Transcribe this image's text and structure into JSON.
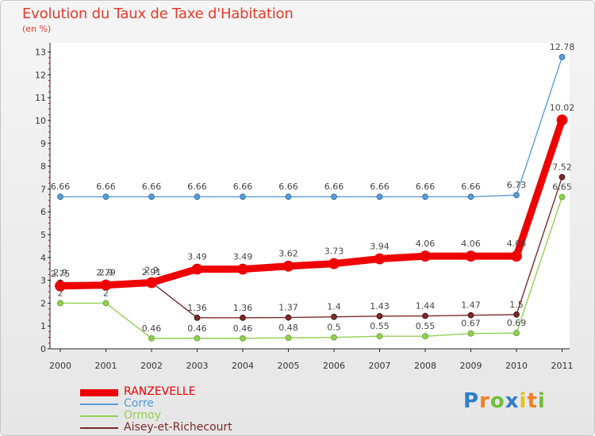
{
  "header": {
    "title": "Evolution du Taux de Taxe d'Habitation",
    "subtitle": "(en %)"
  },
  "chart_data": {
    "type": "line",
    "title": "Evolution du Taux de Taxe d'Habitation",
    "ylabel": "(en %)",
    "xlabel": "",
    "x": [
      "2000",
      "2001",
      "2002",
      "2003",
      "2004",
      "2005",
      "2006",
      "2007",
      "2008",
      "2009",
      "2010",
      "2011"
    ],
    "ylim": [
      0,
      13
    ],
    "yticks": [
      "0",
      "1",
      "2",
      "3",
      "4",
      "5",
      "6",
      "7",
      "8",
      "9",
      "10",
      "11",
      "12",
      "13"
    ],
    "grid": false,
    "legend_position": "bottom-left",
    "series": [
      {
        "name": "RANZEVELLE",
        "color": "#ee0000",
        "values": [
          2.75,
          2.79,
          2.9,
          3.49,
          3.49,
          3.62,
          3.73,
          3.94,
          4.06,
          4.06,
          4.06,
          10.02
        ],
        "labels": [
          "2.75",
          "2.79",
          "2.9",
          "3.49",
          "3.49",
          "3.62",
          "3.73",
          "3.94",
          "4.06",
          "4.06",
          "4.06",
          "10.02"
        ]
      },
      {
        "name": "Corre",
        "color": "#5b9bd5",
        "values": [
          6.66,
          6.66,
          6.66,
          6.66,
          6.66,
          6.66,
          6.66,
          6.66,
          6.66,
          6.66,
          6.73,
          12.78
        ],
        "labels": [
          "6.66",
          "6.66",
          "6.66",
          "6.66",
          "6.66",
          "6.66",
          "6.66",
          "6.66",
          "6.66",
          "6.66",
          "6.73",
          "12.78"
        ]
      },
      {
        "name": "Ormoy",
        "color": "#92d050",
        "values": [
          2,
          2,
          0.46,
          0.46,
          0.46,
          0.48,
          0.5,
          0.55,
          0.55,
          0.67,
          0.69,
          6.65
        ],
        "labels": [
          "2",
          "2",
          "0.46",
          "0.46",
          "0.46",
          "0.48",
          "0.5",
          "0.55",
          "0.55",
          "0.67",
          "0.69",
          "6.65"
        ]
      },
      {
        "name": "Aisey-et-Richecourt",
        "color": "#7b2a2a",
        "values": [
          2.9,
          2.9,
          2.91,
          1.36,
          1.36,
          1.37,
          1.4,
          1.43,
          1.44,
          1.47,
          1.5,
          7.52
        ],
        "labels": [
          "2.9",
          "2.9",
          "2.91",
          "1.36",
          "1.36",
          "1.37",
          "1.4",
          "1.43",
          "1.44",
          "1.47",
          "1.5",
          "7.52"
        ]
      }
    ]
  },
  "logo": {
    "letters": [
      "P",
      "r",
      "o",
      "x",
      "i",
      "t",
      "i"
    ],
    "colors": [
      "#2c7fc9",
      "#f07e1f",
      "#6fbf3a",
      "#2c7fc9",
      "#e2c11b",
      "#f07e1f",
      "#6fbf3a"
    ]
  }
}
